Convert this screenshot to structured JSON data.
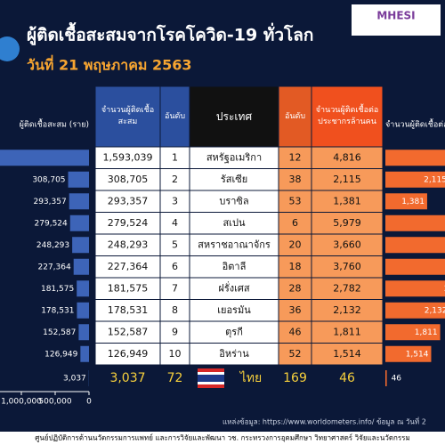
{
  "header": {
    "title": "ผู้ติดเชื้อสะสมจากโรคโควิด-19 ทั่วโลก",
    "date": "วันที่ 21 พฤษภาคม 2563",
    "logo": "MHESI"
  },
  "table": {
    "headers": [
      "จำนวนผู้ติดเชื้อสะสม",
      "อันดับ",
      "ประเทศ",
      "อันดับ",
      "จำนวนผู้ติดเชื้อต่อประชากรล้านคน"
    ],
    "rows": [
      {
        "rank": 1,
        "country": "สหรัฐอเมริกา",
        "per_million_rank": 12
      },
      {
        "rank": 2,
        "country": "รัสเซีย",
        "per_million_rank": 38
      },
      {
        "rank": 3,
        "country": "บราซิล",
        "per_million_rank": 53
      },
      {
        "rank": 4,
        "country": "สเปน",
        "per_million_rank": 6
      },
      {
        "rank": 5,
        "country": "สหราชอาณาจักร",
        "per_million_rank": 20
      },
      {
        "rank": 6,
        "country": "อิตาลี",
        "per_million_rank": 18
      },
      {
        "rank": 7,
        "country": "ฝรั่งเศส",
        "per_million_rank": 28
      },
      {
        "rank": 8,
        "country": "เยอรมัน",
        "per_million_rank": 36
      },
      {
        "rank": 9,
        "country": "ตุรกี",
        "per_million_rank": 46
      },
      {
        "rank": 10,
        "country": "อิหร่าน",
        "per_million_rank": 52
      },
      {
        "rank": 72,
        "country": "ไทย",
        "per_million_rank": 169
      }
    ]
  },
  "cases_chart": {
    "title": "ผู้ติดเชื้อสะสม (ราย)",
    "values": [
      1593039,
      308705,
      293357,
      279524,
      248293,
      227364,
      181575,
      178531,
      152587,
      126949,
      3037
    ],
    "value_labels": [
      "1,593,039",
      "308,705",
      "293,357",
      "279,524",
      "248,293",
      "227,364",
      "181,575",
      "178,531",
      "152,587",
      "126,949",
      "3,037"
    ],
    "xticks": [
      {
        "value": 1000000,
        "label": "1,000,000"
      },
      {
        "value": 500000,
        "label": "500,000"
      },
      0
    ]
  },
  "per_million_chart": {
    "title": "จำนวนผู้ติดเชื้อต่อประชากรล้านคน",
    "values": [
      4816,
      2115,
      1381,
      5979,
      3660,
      3760,
      2782,
      2132,
      1811,
      1514,
      46
    ],
    "value_labels": [
      "4,816",
      "2,115",
      "1,381",
      "5,979",
      "3,660",
      "3,760",
      "2,782",
      "2,132",
      "1,811",
      "1,514",
      "46"
    ]
  },
  "footer": {
    "source": "แหล่งข้อมูล: https://www.worldometers.info/  ข้อมูล ณ วันที่ 2",
    "org": "ศูนย์ปฏิบัติการด้านนวัตกรรมการแพทย์ และการวิจัยและพัฒนา วช.  กระทรวงการอุดมศึกษา วิทยาศาสตร์ วิจัยและนวัตกรรม"
  }
}
